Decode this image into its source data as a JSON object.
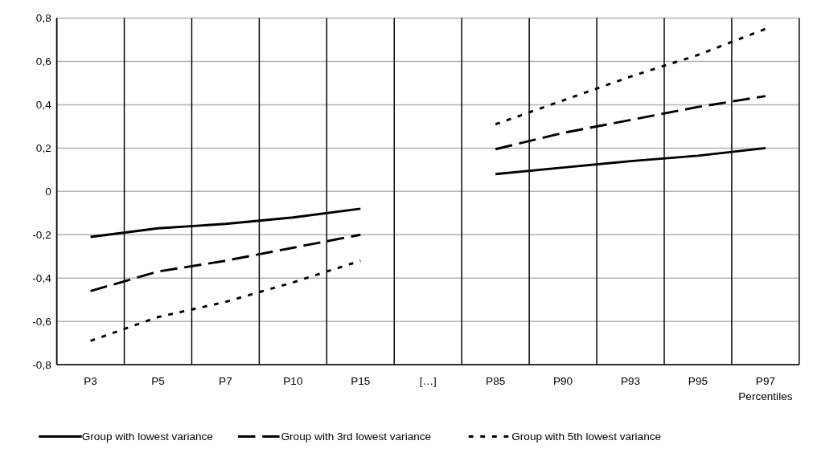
{
  "chart_data": {
    "type": "line",
    "xlabel": "Percentiles",
    "categories": [
      "P3",
      "P5",
      "P7",
      "P10",
      "P15",
      "[…]",
      "P85",
      "P90",
      "P93",
      "P95",
      "P97"
    ],
    "series": [
      {
        "name": "Group with lowest variance",
        "color": "#000000",
        "line_style": "solid",
        "values": [
          -0.21,
          -0.17,
          -0.15,
          -0.12,
          -0.08,
          null,
          0.08,
          0.11,
          0.14,
          0.165,
          0.2
        ]
      },
      {
        "name": "Group with 3rd lowest variance",
        "color": "#000000",
        "line_style": "dashed",
        "values": [
          -0.46,
          -0.37,
          -0.32,
          -0.26,
          -0.2,
          null,
          0.195,
          0.27,
          0.33,
          0.39,
          0.44
        ]
      },
      {
        "name": "Group with 5th lowest variance",
        "color": "#000000",
        "line_style": "dotted",
        "values": [
          -0.69,
          -0.58,
          -0.51,
          -0.42,
          -0.32,
          null,
          0.31,
          0.42,
          0.53,
          0.63,
          0.75
        ]
      }
    ],
    "ylim": [
      -0.8,
      0.8
    ],
    "yticks": [
      {
        "value": -0.8,
        "label": "-0,8"
      },
      {
        "value": -0.6,
        "label": "-0,6"
      },
      {
        "value": -0.4,
        "label": "-0,4"
      },
      {
        "value": -0.2,
        "label": "-0,2"
      },
      0,
      {
        "value": 0.2,
        "label": "0,2"
      },
      {
        "value": 0.4,
        "label": "0,4"
      },
      {
        "value": 0.6,
        "label": "0,6"
      },
      {
        "value": 0.8,
        "label": "0,8"
      }
    ],
    "grid": true,
    "legend": "bottom",
    "marker": "none"
  }
}
